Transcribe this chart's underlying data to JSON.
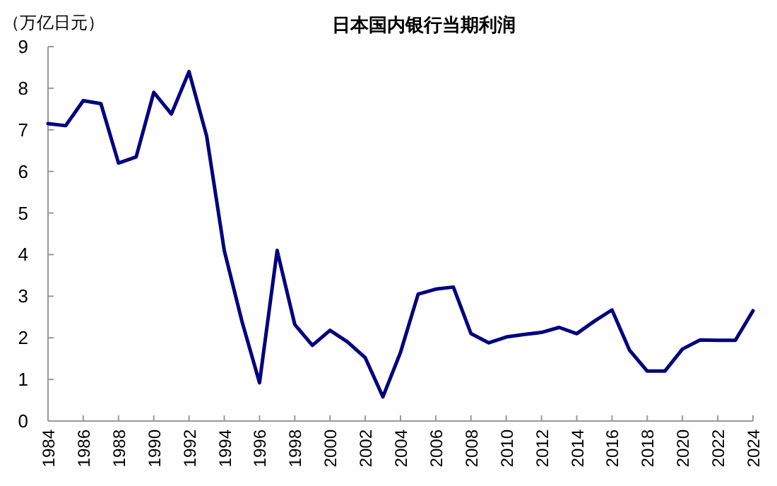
{
  "chart_data": {
    "type": "line",
    "title": "日本国内银行当期利润",
    "ylabel": "（万亿日元）",
    "x": [
      1984,
      1985,
      1986,
      1987,
      1988,
      1989,
      1990,
      1991,
      1992,
      1993,
      1994,
      1995,
      1996,
      1997,
      1998,
      1999,
      2000,
      2001,
      2002,
      2003,
      2004,
      2005,
      2006,
      2007,
      2008,
      2009,
      2010,
      2011,
      2012,
      2013,
      2014,
      2015,
      2016,
      2017,
      2018,
      2019,
      2020,
      2021,
      2022,
      2023,
      2024
    ],
    "series": [
      {
        "color": "#000080",
        "values": [
          7.15,
          7.1,
          7.7,
          7.63,
          6.2,
          6.35,
          7.9,
          7.38,
          8.4,
          6.85,
          4.1,
          2.4,
          0.92,
          4.1,
          2.32,
          1.82,
          2.18,
          1.9,
          1.52,
          0.58,
          1.65,
          3.05,
          3.17,
          3.22,
          2.1,
          1.88,
          2.02,
          2.08,
          2.13,
          2.25,
          2.1,
          2.4,
          2.67,
          1.7,
          1.2,
          1.2,
          1.73,
          1.95,
          1.94,
          1.94,
          2.65
        ]
      }
    ],
    "xlim": [
      1984,
      2024
    ],
    "xticks": [
      1984,
      1986,
      1988,
      1990,
      1992,
      1994,
      1996,
      1998,
      2000,
      2002,
      2004,
      2006,
      2008,
      2010,
      2012,
      2014,
      2016,
      2018,
      2020,
      2022,
      2024
    ],
    "ylim": [
      0,
      9
    ],
    "yticks": [
      0,
      1,
      2,
      3,
      4,
      5,
      6,
      7,
      8,
      9
    ],
    "grid": false,
    "marker": "none",
    "line_style": "solid"
  }
}
